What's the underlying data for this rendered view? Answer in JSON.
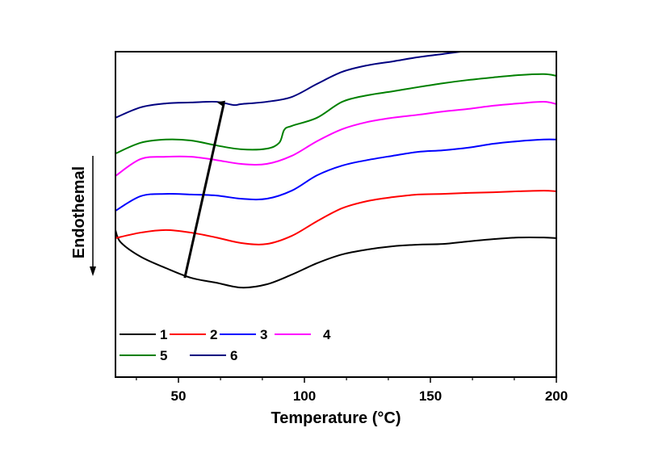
{
  "chart_data": {
    "type": "line",
    "title": "",
    "xlabel": "Temperature (°C)",
    "ylabel": "Endothemal",
    "ylabel_arrow": "down",
    "xlim": [
      25,
      200
    ],
    "ylim": [
      0,
      100
    ],
    "y_units": "arbitrary (no tick labels)",
    "x_major_ticks": [
      50,
      100,
      150,
      200
    ],
    "x_minor_ticks": [
      33.3,
      66.7,
      83.3,
      116.7,
      133.3,
      166.7,
      183.3
    ],
    "grid": false,
    "legend": {
      "placement": "bottom-left",
      "columns": 4
    },
    "annotation": {
      "type": "arrow",
      "from": [
        52.5,
        30.5
      ],
      "to": [
        68,
        84.0
      ],
      "meaning": "trend from curve 1 to curve 6"
    },
    "series": [
      {
        "name": "1",
        "color": "#000000",
        "x": [
          25,
          27,
          35,
          45,
          55,
          65,
          75,
          85,
          95,
          105,
          115,
          125,
          135,
          145,
          155,
          165,
          175,
          185,
          195,
          200
        ],
        "y": [
          45.2,
          41.5,
          37.0,
          33.5,
          30.5,
          29.0,
          27.5,
          28.5,
          31.5,
          35.0,
          37.7,
          39.2,
          40.2,
          40.7,
          40.9,
          41.7,
          42.4,
          42.9,
          42.9,
          42.7
        ]
      },
      {
        "name": "2",
        "color": "#ff0000",
        "x": [
          25,
          35,
          45,
          55,
          65,
          75,
          85,
          95,
          105,
          115,
          125,
          135,
          145,
          155,
          165,
          175,
          185,
          195,
          200
        ],
        "y": [
          42.7,
          44.4,
          45.2,
          44.4,
          42.9,
          41.2,
          40.9,
          43.4,
          47.9,
          51.9,
          54.1,
          55.3,
          56.1,
          56.3,
          56.6,
          56.8,
          57.1,
          57.3,
          57.1
        ]
      },
      {
        "name": "3",
        "color": "#0000ff",
        "x": [
          25,
          35,
          45,
          55,
          65,
          75,
          85,
          95,
          105,
          115,
          125,
          135,
          145,
          155,
          165,
          175,
          185,
          195,
          200
        ],
        "y": [
          51.1,
          55.6,
          56.3,
          56.1,
          55.8,
          54.8,
          54.8,
          57.3,
          62.0,
          65.0,
          66.7,
          68.0,
          69.2,
          69.7,
          70.5,
          71.7,
          72.5,
          73.0,
          73.0
        ]
      },
      {
        "name": "4",
        "color": "#ff00ff",
        "x": [
          25,
          35,
          45,
          55,
          65,
          75,
          85,
          95,
          105,
          115,
          125,
          135,
          145,
          155,
          165,
          175,
          185,
          195,
          200
        ],
        "y": [
          61.8,
          67.0,
          67.7,
          67.7,
          66.7,
          65.5,
          65.5,
          68.0,
          72.5,
          76.2,
          78.4,
          79.7,
          80.6,
          81.6,
          82.4,
          83.4,
          84.1,
          84.6,
          83.9
        ]
      },
      {
        "name": "5",
        "color": "#008000",
        "x": [
          25,
          35,
          45,
          55,
          65,
          75,
          85,
          90,
          92,
          95,
          105,
          115,
          125,
          135,
          145,
          155,
          165,
          175,
          185,
          195,
          200
        ],
        "y": [
          68.7,
          72.0,
          73.0,
          72.7,
          71.2,
          70.0,
          70.2,
          72.0,
          76.0,
          77.2,
          79.7,
          84.6,
          86.6,
          87.8,
          89.1,
          90.3,
          91.3,
          92.1,
          92.8,
          93.1,
          92.6
        ]
      },
      {
        "name": "6",
        "color": "#000080",
        "x": [
          25,
          35,
          45,
          55,
          65,
          72,
          75,
          85,
          95,
          105,
          115,
          125,
          135,
          145,
          155,
          162
        ],
        "y": [
          79.7,
          82.9,
          84.1,
          84.4,
          84.6,
          83.6,
          83.9,
          84.6,
          86.1,
          90.1,
          93.8,
          95.8,
          97.0,
          98.3,
          99.3,
          100.0
        ]
      }
    ]
  }
}
